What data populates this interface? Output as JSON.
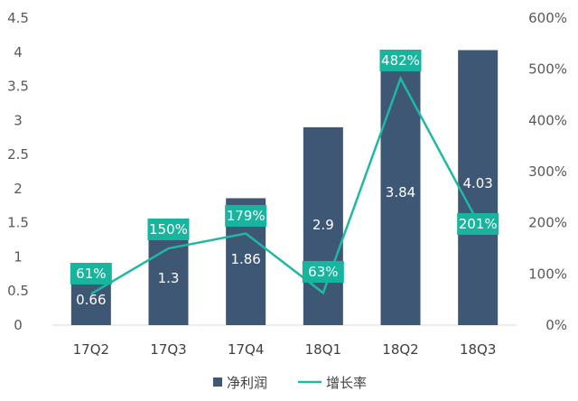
{
  "colors": {
    "bar": "#3d5774",
    "line": "#1fb8a3",
    "label_box": "#19b49e",
    "axis": "#d9d9d9"
  },
  "chart_data": {
    "type": "bar",
    "categories": [
      "17Q2",
      "17Q3",
      "17Q4",
      "18Q1",
      "18Q2",
      "18Q3"
    ],
    "series": [
      {
        "name": "净利润",
        "type": "bar",
        "axis": "left",
        "values": [
          0.66,
          1.3,
          1.86,
          2.9,
          3.84,
          4.03
        ],
        "labels": [
          "0.66",
          "1.3",
          "1.86",
          "2.9",
          "3.84",
          "4.03"
        ]
      },
      {
        "name": "增长率",
        "type": "line",
        "axis": "right",
        "values": [
          61,
          150,
          179,
          63,
          482,
          201
        ],
        "labels": [
          "61%",
          "150%",
          "179%",
          "63%",
          "482%",
          "201%"
        ]
      }
    ],
    "y_left": {
      "range": [
        0,
        4.5
      ],
      "ticks": [
        "0",
        "0.5",
        "1",
        "1.5",
        "2",
        "2.5",
        "3",
        "3.5",
        "4",
        "4.5"
      ]
    },
    "y_right": {
      "range": [
        0,
        600
      ],
      "ticks": [
        "0%",
        "100%",
        "200%",
        "300%",
        "400%",
        "500%",
        "600%"
      ]
    },
    "legend": {
      "placement": "bottom",
      "items": [
        "净利润",
        "增长率"
      ]
    },
    "grid": false
  }
}
